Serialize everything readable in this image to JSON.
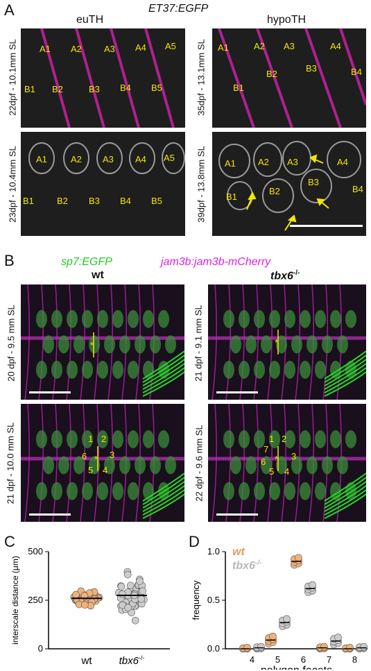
{
  "panelA": {
    "letter": "A",
    "title": "ET37:EGFP",
    "col_left": "euTH",
    "col_right": "hypoTH",
    "rows": [
      {
        "label": "22dpf - 10.1mm SL",
        "scales": [
          "A1",
          "A2",
          "A3",
          "A4",
          "A5",
          "B1",
          "B2",
          "B3",
          "B4",
          "B5"
        ]
      },
      {
        "label": "35dpf - 13.1mm SL",
        "scales": [
          "A1",
          "A2",
          "A3",
          "A4",
          "B1",
          "B2",
          "B3",
          "B4"
        ]
      },
      {
        "label": "23dpf - 10.4mm SL",
        "scales": [
          "A1",
          "A2",
          "A3",
          "A4",
          "A5",
          "B1",
          "B2",
          "B3",
          "B4",
          "B5"
        ]
      },
      {
        "label": "39dpf - 13.8mm SL",
        "scales": [
          "A1",
          "A2",
          "A3",
          "A4",
          "B1",
          "B2",
          "B3",
          "B4"
        ]
      }
    ]
  },
  "panelB": {
    "letter": "B",
    "title_green": "sp7:EGFP",
    "title_magenta": "jam3b:jam3b-mCherry",
    "col_left": "wt",
    "col_right": "tbx6",
    "col_right_sup": "-/-",
    "rows": [
      {
        "label": "20 dpf - 9.5 mm SL"
      },
      {
        "label": "21 dpf - 9.1 mm SL"
      },
      {
        "label": "21 dpf - 10.0 mm SL",
        "numbers": [
          "1",
          "2",
          "3",
          "4",
          "5",
          "6"
        ]
      },
      {
        "label": "22 dpf - 9.6 mm SL",
        "numbers": [
          "1",
          "2",
          "3",
          "4",
          "5",
          "6",
          "7"
        ]
      }
    ],
    "star": "*"
  },
  "panelC": {
    "letter": "C",
    "chart_data": {
      "type": "scatter",
      "ylabel": "interscale distance (μm)",
      "categories": [
        "wt",
        "tbx6"
      ],
      "category_sup": [
        "",
        "-/-"
      ],
      "yticks": [
        0,
        250,
        500
      ],
      "ylim": [
        0,
        500
      ],
      "series": [
        {
          "name": "wt",
          "color": "#f0b27a",
          "mean": 260,
          "spread": [
            215,
            300
          ]
        },
        {
          "name": "tbx6",
          "color": "#cccccc",
          "mean": 275,
          "spread": [
            150,
            410
          ]
        }
      ]
    }
  },
  "panelD": {
    "letter": "D",
    "chart_data": {
      "type": "scatter",
      "xlabel": "polygon facets",
      "ylabel": "frequency",
      "categories": [
        "4",
        "5",
        "6",
        "7",
        "8"
      ],
      "yticks": [
        "0.0",
        "0.5",
        "1.0"
      ],
      "ylim": [
        0,
        1.0
      ],
      "legend": [
        {
          "name": "wt",
          "color": "#e39b5f"
        },
        {
          "name": "tbx6",
          "sup": "-/-",
          "color": "#b8b8b8"
        }
      ],
      "series": [
        {
          "name": "wt",
          "color": "#f0b27a",
          "means": [
            0.0,
            0.09,
            0.9,
            0.01,
            0.0
          ]
        },
        {
          "name": "tbx6",
          "color": "#cccccc",
          "means": [
            0.01,
            0.27,
            0.62,
            0.08,
            0.01
          ]
        }
      ]
    }
  }
}
